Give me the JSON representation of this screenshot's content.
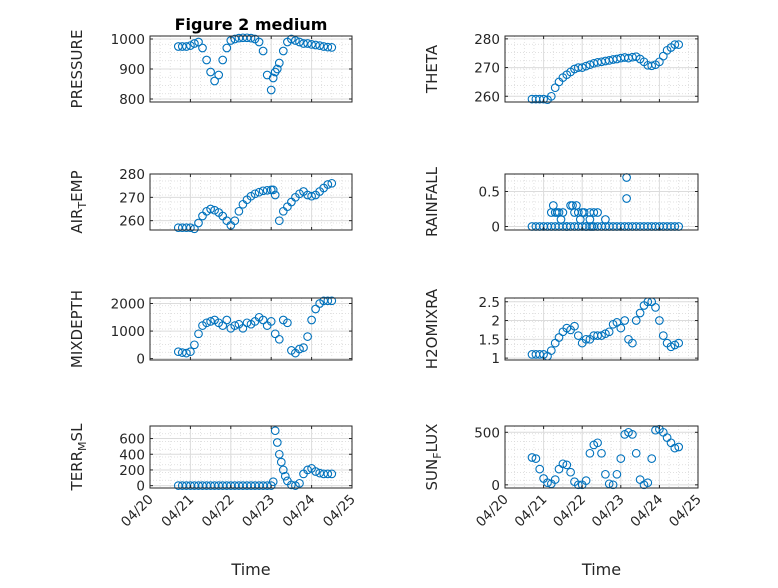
{
  "figure": {
    "title": "Figure 2 medium"
  },
  "colors": {
    "marker": "#0072BD",
    "axis": "#262626",
    "grid": "#d6d6d6",
    "box": "#262626"
  },
  "chart_data": [
    {
      "type": "scatter",
      "ylabel": "PRESSURE",
      "ylim": [
        790,
        1010
      ],
      "yticks": [
        800,
        900,
        1000
      ],
      "ytick_labels": [
        "800",
        "900",
        "1000"
      ],
      "xlabel": "",
      "xtick_labels": [],
      "grid": true,
      "x": [
        0.7,
        0.8,
        0.9,
        1.0,
        1.1,
        1.2,
        1.3,
        1.4,
        1.5,
        1.6,
        1.7,
        1.8,
        1.9,
        2.0,
        2.1,
        2.2,
        2.3,
        2.4,
        2.5,
        2.6,
        2.7,
        2.8,
        2.9,
        3.0,
        3.05,
        3.1,
        3.15,
        3.2,
        3.3,
        3.4,
        3.5,
        3.6,
        3.7,
        3.8,
        3.9,
        4.0,
        4.1,
        4.2,
        4.3,
        4.4,
        4.5
      ],
      "y": [
        975,
        975,
        975,
        978,
        985,
        990,
        970,
        930,
        890,
        860,
        880,
        930,
        970,
        995,
        1000,
        1003,
        1004,
        1004,
        1003,
        1000,
        990,
        960,
        880,
        830,
        870,
        890,
        900,
        920,
        960,
        990,
        1000,
        995,
        990,
        985,
        985,
        982,
        980,
        978,
        975,
        973,
        972
      ]
    },
    {
      "type": "scatter",
      "ylabel": "THETA",
      "ylim": [
        258,
        281
      ],
      "yticks": [
        260,
        270,
        280
      ],
      "ytick_labels": [
        "260",
        "270",
        "280"
      ],
      "xlabel": "",
      "xtick_labels": [],
      "grid": true,
      "x": [
        0.7,
        0.8,
        0.9,
        1.0,
        1.1,
        1.2,
        1.3,
        1.4,
        1.5,
        1.6,
        1.7,
        1.8,
        1.9,
        2.0,
        2.1,
        2.2,
        2.3,
        2.4,
        2.5,
        2.6,
        2.7,
        2.8,
        2.9,
        3.0,
        3.1,
        3.2,
        3.3,
        3.4,
        3.5,
        3.6,
        3.7,
        3.8,
        3.9,
        4.0,
        4.1,
        4.2,
        4.3,
        4.4,
        4.5
      ],
      "y": [
        259,
        259,
        259,
        259,
        258.8,
        260,
        263,
        265,
        266.5,
        267.5,
        268.5,
        269.5,
        270,
        270,
        270.5,
        271,
        271.5,
        271.8,
        272,
        272.3,
        272.5,
        272.8,
        273,
        273.3,
        273.5,
        273.3,
        273.6,
        273.8,
        273,
        272,
        270.8,
        270.6,
        271,
        272,
        274,
        276,
        277,
        278,
        278
      ]
    },
    {
      "type": "scatter",
      "ylabel": "AIR_TEMP",
      "ylim": [
        256,
        280
      ],
      "yticks": [
        260,
        270,
        280
      ],
      "ytick_labels": [
        "260",
        "270",
        "280"
      ],
      "xlabel": "",
      "xtick_labels": [],
      "grid": true,
      "x": [
        0.7,
        0.8,
        0.9,
        1.0,
        1.1,
        1.2,
        1.3,
        1.4,
        1.5,
        1.6,
        1.7,
        1.8,
        1.9,
        2.0,
        2.1,
        2.2,
        2.3,
        2.4,
        2.5,
        2.6,
        2.7,
        2.8,
        2.9,
        3.0,
        3.05,
        3.1,
        3.2,
        3.3,
        3.4,
        3.5,
        3.6,
        3.7,
        3.8,
        3.9,
        4.0,
        4.1,
        4.2,
        4.3,
        4.4,
        4.5
      ],
      "y": [
        257,
        257,
        257,
        257,
        256.5,
        259,
        262,
        264,
        265,
        264.5,
        263.5,
        262,
        260,
        258,
        260,
        264,
        267,
        269,
        270.5,
        271.5,
        272.2,
        272.8,
        273,
        273.2,
        273.2,
        271,
        260,
        264,
        266,
        268,
        270,
        271.5,
        272.5,
        271,
        270.5,
        271,
        272.5,
        274,
        275.5,
        276
      ]
    },
    {
      "type": "scatter",
      "ylabel": "RAINFALL",
      "ylim": [
        -0.05,
        0.75
      ],
      "yticks": [
        0,
        0.5
      ],
      "ytick_labels": [
        "0",
        "0.5"
      ],
      "xlabel": "",
      "xtick_labels": [],
      "grid": true,
      "x": [
        0.7,
        0.8,
        0.9,
        1.0,
        1.1,
        1.2,
        1.3,
        1.4,
        1.5,
        1.6,
        1.7,
        1.8,
        1.9,
        2.0,
        2.1,
        2.2,
        2.3,
        2.4,
        2.5,
        2.6,
        2.7,
        2.8,
        2.9,
        3.0,
        3.1,
        3.2,
        3.3,
        3.4,
        3.5,
        3.6,
        3.7,
        3.8,
        3.9,
        4.0,
        4.1,
        4.2,
        4.3,
        4.4,
        4.5,
        1.2,
        1.25,
        1.3,
        1.35,
        1.4,
        1.45,
        1.5,
        1.6,
        1.7,
        1.75,
        1.8,
        1.85,
        1.9,
        1.95,
        2.0,
        2.05,
        2.1,
        2.2,
        2.3,
        2.4,
        2.6,
        3.15,
        3.15,
        2.2,
        2.25
      ],
      "y": [
        0,
        0,
        0,
        0,
        0,
        0,
        0,
        0,
        0,
        0,
        0,
        0,
        0,
        0,
        0,
        0,
        0,
        0,
        0,
        0,
        0,
        0,
        0,
        0,
        0,
        0,
        0,
        0,
        0,
        0,
        0,
        0,
        0,
        0,
        0,
        0,
        0,
        0,
        0,
        0.2,
        0.3,
        0.2,
        0.2,
        0.2,
        0.1,
        0.2,
        0,
        0.3,
        0.3,
        0.2,
        0.3,
        0.2,
        0.1,
        0.2,
        0.2,
        0,
        0.2,
        0.2,
        0.2,
        0.1,
        0.4,
        0.7,
        0.1,
        0
      ]
    },
    {
      "type": "scatter",
      "ylabel": "MIXDEPTH",
      "ylim": [
        -50,
        2200
      ],
      "yticks": [
        0,
        1000,
        2000
      ],
      "ytick_labels": [
        "0",
        "1000",
        "2000"
      ],
      "xlabel": "",
      "xtick_labels": [],
      "grid": true,
      "x": [
        0.7,
        0.8,
        0.9,
        1.0,
        1.1,
        1.2,
        1.3,
        1.4,
        1.5,
        1.6,
        1.7,
        1.8,
        1.9,
        2.0,
        2.1,
        2.2,
        2.3,
        2.4,
        2.5,
        2.6,
        2.7,
        2.8,
        2.9,
        3.0,
        3.1,
        3.2,
        3.3,
        3.4,
        3.5,
        3.6,
        3.7,
        3.8,
        3.9,
        4.0,
        4.1,
        4.2,
        4.3,
        4.4,
        4.5
      ],
      "y": [
        250,
        220,
        200,
        250,
        500,
        900,
        1200,
        1300,
        1350,
        1400,
        1300,
        1200,
        1400,
        1100,
        1200,
        1250,
        1100,
        1300,
        1250,
        1350,
        1500,
        1400,
        1200,
        1350,
        900,
        700,
        1400,
        1300,
        300,
        200,
        350,
        400,
        800,
        1400,
        1800,
        2000,
        2100,
        2100,
        2100
      ]
    },
    {
      "type": "scatter",
      "ylabel": "H2OMIXRA",
      "ylim": [
        0.95,
        2.6
      ],
      "yticks": [
        1,
        1.5,
        2,
        2.5
      ],
      "ytick_labels": [
        "1",
        "1.5",
        "2",
        "2.5"
      ],
      "xlabel": "",
      "xtick_labels": [],
      "grid": true,
      "x": [
        0.7,
        0.8,
        0.9,
        1.0,
        1.1,
        1.2,
        1.3,
        1.4,
        1.5,
        1.6,
        1.7,
        1.8,
        1.9,
        2.0,
        2.1,
        2.2,
        2.3,
        2.4,
        2.5,
        2.6,
        2.7,
        2.8,
        2.9,
        3.0,
        3.1,
        3.2,
        3.3,
        3.4,
        3.5,
        3.6,
        3.7,
        3.8,
        3.9,
        4.0,
        4.1,
        4.2,
        4.3,
        4.4,
        4.5
      ],
      "y": [
        1.1,
        1.1,
        1.1,
        1.1,
        1.05,
        1.2,
        1.4,
        1.55,
        1.7,
        1.8,
        1.75,
        1.85,
        1.6,
        1.4,
        1.5,
        1.5,
        1.6,
        1.6,
        1.6,
        1.65,
        1.7,
        1.9,
        1.95,
        1.8,
        2.0,
        1.5,
        1.4,
        2.0,
        2.2,
        2.4,
        2.5,
        2.5,
        2.35,
        2.0,
        1.6,
        1.4,
        1.3,
        1.35,
        1.4
      ]
    },
    {
      "type": "scatter",
      "ylabel": "TERR_MSL",
      "ylim": [
        -30,
        760
      ],
      "yticks": [
        0,
        200,
        400,
        600
      ],
      "ytick_labels": [
        "0",
        "200",
        "400",
        "600"
      ],
      "xlabel": "Time",
      "xtick_labels": [
        "04/20",
        "04/21",
        "04/22",
        "04/23",
        "04/24",
        "04/25"
      ],
      "grid": true,
      "x": [
        0.7,
        0.8,
        0.9,
        1.0,
        1.1,
        1.2,
        1.3,
        1.4,
        1.5,
        1.6,
        1.7,
        1.8,
        1.9,
        2.0,
        2.1,
        2.2,
        2.3,
        2.4,
        2.5,
        2.6,
        2.7,
        2.8,
        2.9,
        3.0,
        3.05,
        3.1,
        3.15,
        3.2,
        3.25,
        3.3,
        3.35,
        3.4,
        3.5,
        3.6,
        3.7,
        3.8,
        3.9,
        4.0,
        4.1,
        4.2,
        4.3,
        4.4,
        4.5
      ],
      "y": [
        0,
        0,
        0,
        0,
        0,
        0,
        0,
        0,
        0,
        0,
        0,
        0,
        0,
        0,
        0,
        0,
        0,
        0,
        0,
        0,
        0,
        0,
        0,
        0,
        50,
        700,
        550,
        400,
        300,
        200,
        120,
        60,
        10,
        0,
        30,
        150,
        200,
        220,
        180,
        160,
        150,
        150,
        150
      ]
    },
    {
      "type": "scatter",
      "ylabel": "SUN_FLUX",
      "ylim": [
        -30,
        560
      ],
      "yticks": [
        0,
        500
      ],
      "ytick_labels": [
        "0",
        "500"
      ],
      "xlabel": "Time",
      "xtick_labels": [
        "04/20",
        "04/21",
        "04/22",
        "04/23",
        "04/24",
        "04/25"
      ],
      "grid": true,
      "x": [
        0.7,
        0.8,
        0.9,
        1.0,
        1.1,
        1.2,
        1.3,
        1.4,
        1.5,
        1.6,
        1.7,
        1.8,
        1.9,
        2.0,
        2.1,
        2.2,
        2.3,
        2.4,
        2.5,
        2.6,
        2.7,
        2.8,
        2.9,
        3.0,
        3.1,
        3.2,
        3.3,
        3.4,
        3.5,
        3.6,
        3.7,
        3.8,
        3.9,
        4.0,
        4.1,
        4.2,
        4.3,
        4.4,
        4.5
      ],
      "y": [
        260,
        250,
        150,
        60,
        20,
        10,
        50,
        150,
        200,
        190,
        120,
        30,
        0,
        0,
        40,
        300,
        380,
        400,
        300,
        100,
        10,
        0,
        100,
        250,
        480,
        500,
        480,
        300,
        50,
        0,
        20,
        250,
        520,
        530,
        500,
        450,
        400,
        350,
        360
      ]
    }
  ]
}
